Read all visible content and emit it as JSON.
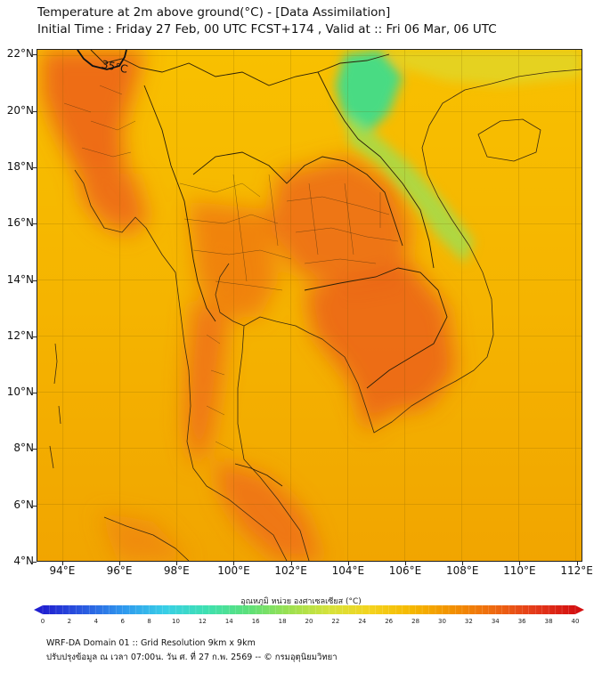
{
  "title": {
    "line1": "Temperature at 2m above ground(°C) - [Data Assimilation]",
    "line2": "Initial Time : Friday 27 Feb, 00 UTC FCST+174 , Valid at :: Fri 06 Mar, 06 UTC"
  },
  "map": {
    "latitudes": [
      {
        "value": 22,
        "label": "22°N"
      },
      {
        "value": 20,
        "label": "20°N"
      },
      {
        "value": 18,
        "label": "18°N"
      },
      {
        "value": 16,
        "label": "16°N"
      },
      {
        "value": 14,
        "label": "14°N"
      },
      {
        "value": 12,
        "label": "12°N"
      },
      {
        "value": 10,
        "label": "10°N"
      },
      {
        "value": 8,
        "label": "8°N"
      },
      {
        "value": 6,
        "label": "6°N"
      },
      {
        "value": 4,
        "label": "4°N"
      }
    ],
    "longitudes": [
      {
        "value": 94,
        "label": "94°E"
      },
      {
        "value": 96,
        "label": "96°E"
      },
      {
        "value": 98,
        "label": "98°E"
      },
      {
        "value": 100,
        "label": "100°E"
      },
      {
        "value": 102,
        "label": "102°E"
      },
      {
        "value": 104,
        "label": "104°E"
      },
      {
        "value": 106,
        "label": "106°E"
      },
      {
        "value": 108,
        "label": "108°E"
      },
      {
        "value": 110,
        "label": "110°E"
      },
      {
        "value": 112,
        "label": "112°E"
      }
    ],
    "extent": {
      "lon_min": 93.1,
      "lon_max": 112.2,
      "lat_min": 4.0,
      "lat_max": 22.2
    },
    "contour_label": "35°C",
    "contour_label_lon": 95.5,
    "contour_label_lat": 21.8
  },
  "colorbar": {
    "label": "อุณหภูมิ หน่วย องศาเซลเซียส (°C)",
    "ticks": [
      "0",
      "2",
      "4",
      "6",
      "8",
      "10",
      "12",
      "14",
      "16",
      "18",
      "20",
      "22",
      "24",
      "26",
      "28",
      "30",
      "32",
      "34",
      "36",
      "38",
      "40"
    ],
    "min": 0,
    "max": 40,
    "colors": [
      "#2020d0",
      "#2a5ae0",
      "#2f9aee",
      "#38cfe6",
      "#3ee0b0",
      "#5be07a",
      "#9be050",
      "#d6e23a",
      "#f4d31e",
      "#f5b800",
      "#f29000",
      "#ee6a10",
      "#e43a1a",
      "#d41010"
    ]
  },
  "footer": {
    "line1": "WRF-DA Domain 01 :: Grid Resolution 9km x 9km",
    "line2": "ปรับปรุงข้อมูล ณ เวลา 07:00น. วัน ศ. ที่ 27 ก.พ. 2569 -- © กรมอุตุนิยมวิทยา"
  }
}
